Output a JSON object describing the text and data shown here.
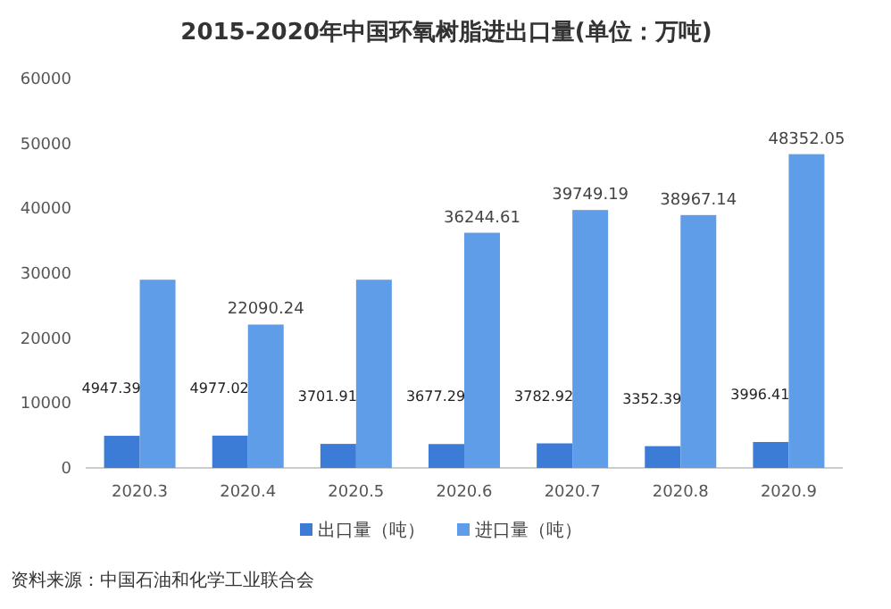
{
  "chart_data": {
    "type": "bar",
    "title": "2015-2020年中国环氧树脂进出口量(单位：万吨)",
    "categories": [
      "2020.3",
      "2020.4",
      "2020.5",
      "2020.6",
      "2020.7",
      "2020.8",
      "2020.9"
    ],
    "series": [
      {
        "name": "出口量（吨）",
        "color": "#3c7bd6",
        "values": [
          4947.39,
          4977.02,
          3701.91,
          3677.29,
          3782.92,
          3352.39,
          3996.41
        ],
        "value_labels": [
          "4947.39",
          "4977.02",
          "3701.91",
          "3677.29",
          "3782.92",
          "3352.39",
          "3996.41"
        ]
      },
      {
        "name": "进口量（吨）",
        "color": "#5f9de8",
        "values": [
          29000,
          22090.24,
          29000,
          36244.61,
          39749.19,
          38967.14,
          48352.05
        ],
        "value_labels": [
          null,
          "22090.24",
          null,
          "36244.61",
          "39749.19",
          "38967.14",
          "48352.05"
        ]
      }
    ],
    "ylim": [
      0,
      60000
    ],
    "yticks": [
      0,
      10000,
      20000,
      30000,
      40000,
      50000,
      60000
    ],
    "grid": false,
    "legend": "bottom",
    "annotations": [
      "资料来源：中国石油和化学工业联合会"
    ]
  }
}
